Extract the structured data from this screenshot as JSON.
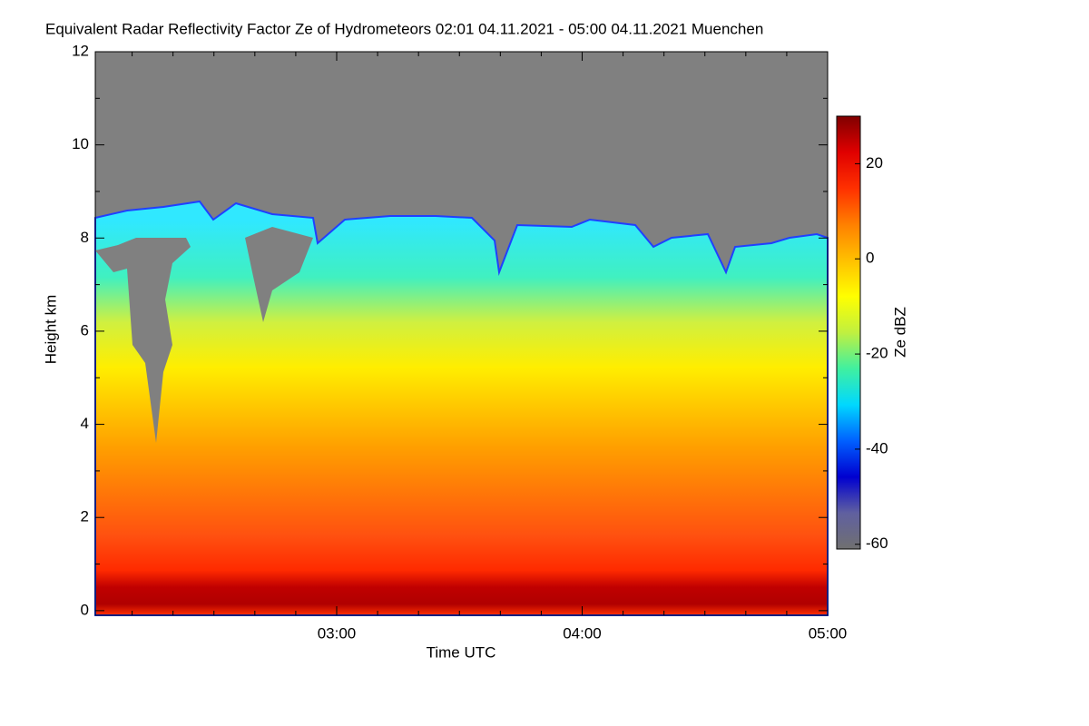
{
  "chart_data": {
    "type": "heatmap",
    "title": "Equivalent Radar Reflectivity Factor Ze of Hydrometeors   02:01 04.11.2021 - 05:00 04.11.2021 Muenchen",
    "x_label": "Time UTC",
    "y_label": "Height km",
    "xlim": [
      121,
      300
    ],
    "xticks": [
      {
        "value": 180,
        "label": "03:00"
      },
      {
        "value": 240,
        "label": "04:00"
      },
      {
        "value": 300,
        "label": "05:00"
      }
    ],
    "xminor_ticks": [
      130,
      140,
      150,
      160,
      170,
      190,
      200,
      210,
      220,
      230,
      250,
      260,
      270,
      280,
      290
    ],
    "ylim": [
      -0.1,
      12
    ],
    "yticks": [
      0,
      2,
      4,
      6,
      8,
      10,
      12
    ],
    "yminor_ticks": [
      1,
      3,
      5,
      7,
      9,
      11
    ],
    "colorbar": {
      "label": "Ze dBZ",
      "lim": [
        -61,
        30
      ],
      "ticks": [
        -60,
        -40,
        -20,
        0,
        20
      ],
      "colors": [
        "#707070",
        "#6060a0",
        "#0000d0",
        "#0060ff",
        "#00d8ff",
        "#40f0a0",
        "#c0f040",
        "#ffff00",
        "#ffc000",
        "#ff8000",
        "#ff3000",
        "#e00000",
        "#800000"
      ]
    }
  }
}
